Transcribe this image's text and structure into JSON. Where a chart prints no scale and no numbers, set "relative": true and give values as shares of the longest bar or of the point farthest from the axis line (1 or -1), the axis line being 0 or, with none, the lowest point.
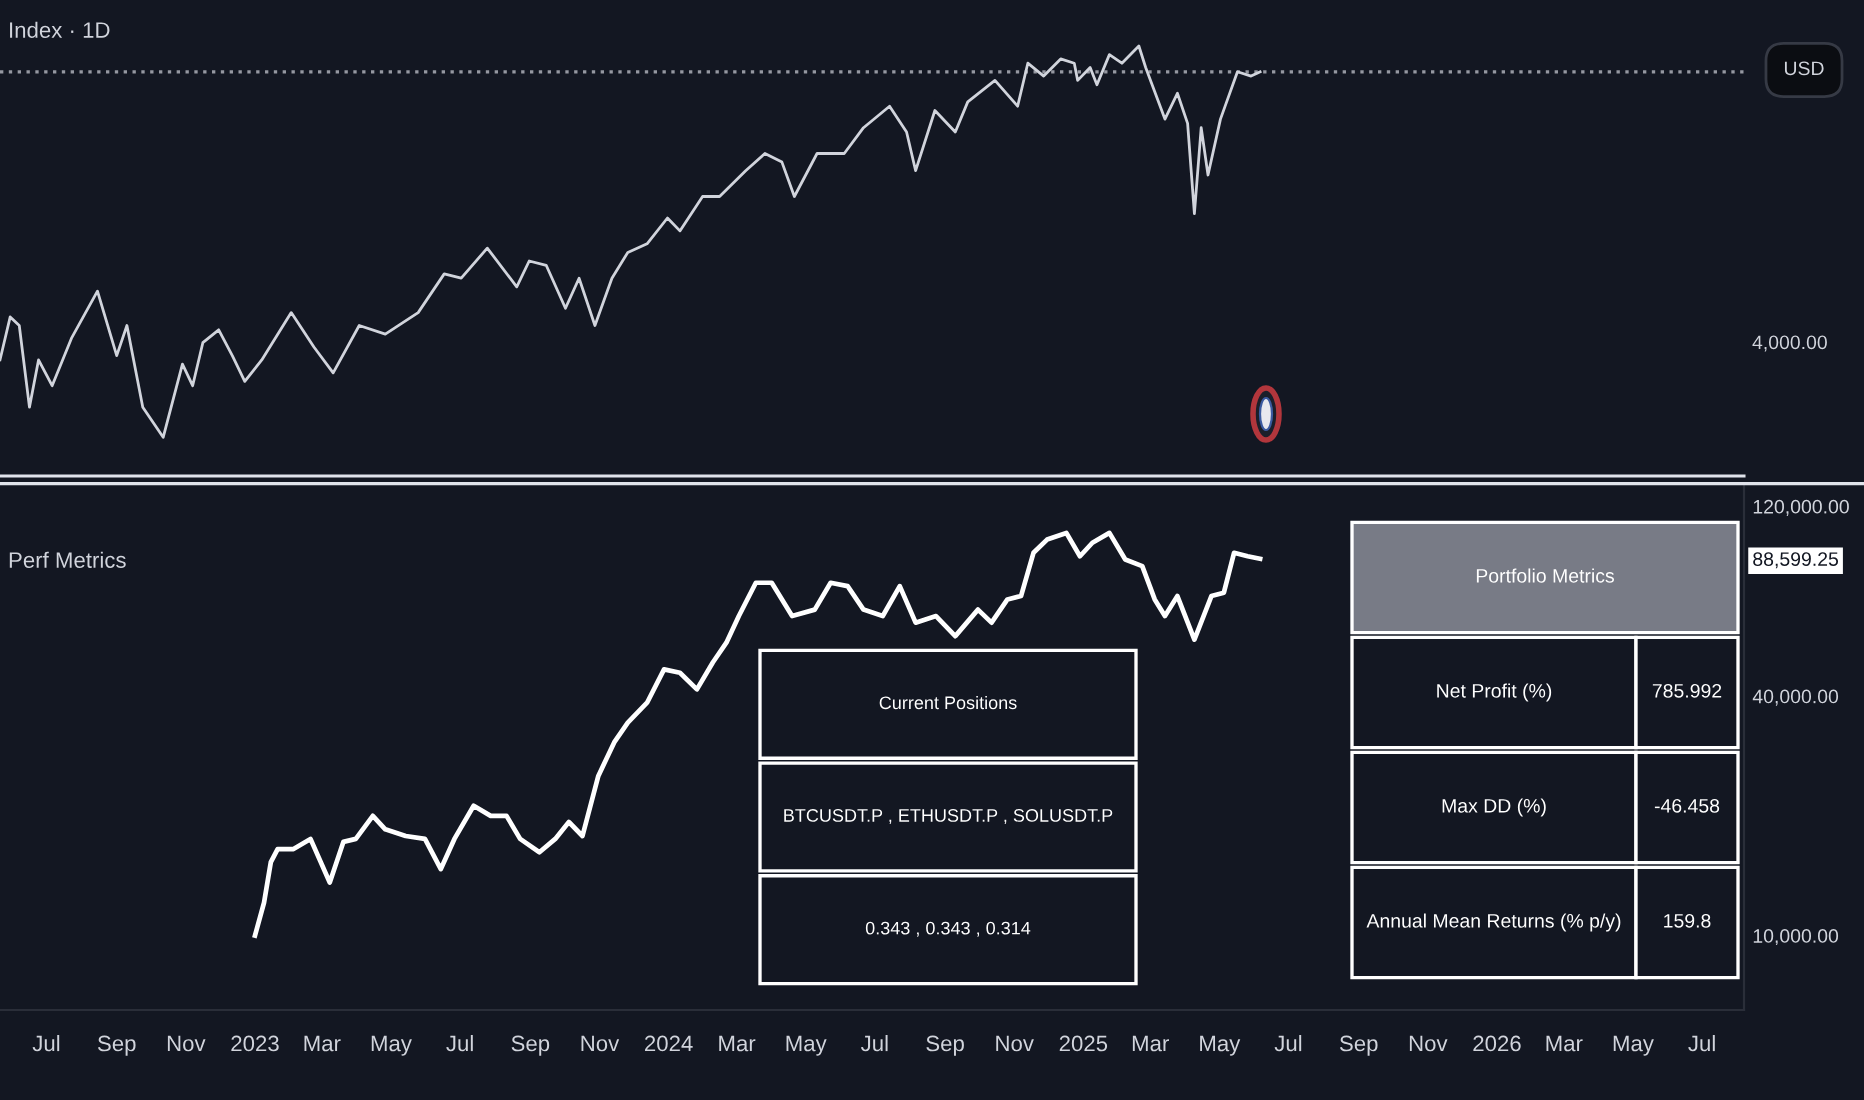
{
  "chart_data": [
    {
      "type": "line",
      "title": "Index · 1D",
      "relative": true,
      "xlim": [
        "2022-05-21",
        "2026-08-07"
      ],
      "series": [
        {
          "color": "#d1d4dc",
          "x": [
            "2022-05-21",
            "2022-05-30",
            "2022-06-07",
            "2022-06-16",
            "2022-06-24",
            "2022-07-06",
            "2022-07-23",
            "2022-08-15",
            "2022-09-01",
            "2022-09-10",
            "2022-09-24",
            "2022-10-12",
            "2022-10-29",
            "2022-11-07",
            "2022-11-16",
            "2022-11-30",
            "2022-12-12",
            "2022-12-23",
            "2023-01-07",
            "2023-02-02",
            "2023-02-22",
            "2023-03-11",
            "2023-04-03",
            "2023-04-26",
            "2023-05-25",
            "2023-06-17",
            "2023-07-02",
            "2023-07-25",
            "2023-08-20",
            "2023-08-31",
            "2023-09-15",
            "2023-10-02",
            "2023-10-14",
            "2023-10-28",
            "2023-11-12",
            "2023-11-26",
            "2023-12-13",
            "2023-12-31",
            "2024-01-11",
            "2024-01-31",
            "2024-02-15",
            "2024-03-09",
            "2024-03-26",
            "2024-04-10",
            "2024-04-21",
            "2024-05-11",
            "2024-06-04",
            "2024-06-21",
            "2024-07-14",
            "2024-07-29",
            "2024-08-06",
            "2024-08-23",
            "2024-09-10",
            "2024-09-21",
            "2024-10-15",
            "2024-11-04",
            "2024-11-13",
            "2024-11-27",
            "2024-12-12",
            "2024-12-24",
            "2024-12-27",
            "2025-01-07",
            "2025-01-13",
            "2025-01-24",
            "2025-02-04",
            "2025-02-19",
            "2025-02-25",
            "2025-03-14",
            "2025-03-25",
            "2025-04-03",
            "2025-04-09",
            "2025-04-15",
            "2025-04-21",
            "2025-05-02",
            "2025-05-17",
            "2025-05-29",
            "2025-06-06"
          ],
          "values": [
            0.27,
            0.37,
            0.35,
            0.16,
            0.27,
            0.21,
            0.32,
            0.43,
            0.28,
            0.35,
            0.16,
            0.09,
            0.26,
            0.21,
            0.31,
            0.34,
            0.28,
            0.22,
            0.27,
            0.38,
            0.3,
            0.24,
            0.35,
            0.33,
            0.38,
            0.47,
            0.46,
            0.53,
            0.44,
            0.5,
            0.49,
            0.39,
            0.46,
            0.35,
            0.46,
            0.52,
            0.54,
            0.6,
            0.57,
            0.65,
            0.65,
            0.71,
            0.75,
            0.73,
            0.65,
            0.75,
            0.75,
            0.81,
            0.86,
            0.8,
            0.71,
            0.85,
            0.8,
            0.87,
            0.92,
            0.86,
            0.96,
            0.93,
            0.97,
            0.96,
            0.92,
            0.95,
            0.91,
            0.98,
            0.96,
            1,
            0.95,
            0.83,
            0.89,
            0.82,
            0.61,
            0.81,
            0.7,
            0.83,
            0.94,
            0.93,
            0.94
          ]
        }
      ],
      "ref_lines": [
        {
          "axis": "y",
          "value": 0.94,
          "color": "#9598a1",
          "line_style": "dotted"
        }
      ],
      "annotations": [
        "4,000.00",
        "USD"
      ]
    },
    {
      "type": "line",
      "title": "Perf Metrics",
      "log": "y",
      "xlim": [
        "2022-05-21",
        "2026-08-07"
      ],
      "xticks": [
        {
          "value": "2022-07-01",
          "label": "Jul"
        },
        {
          "value": "2022-09-01",
          "label": "Sep"
        },
        {
          "value": "2022-11-01",
          "label": "Nov"
        },
        {
          "value": "2023-01-01",
          "label": "2023"
        },
        {
          "value": "2023-03-01",
          "label": "Mar"
        },
        {
          "value": "2023-05-01",
          "label": "May"
        },
        {
          "value": "2023-07-01",
          "label": "Jul"
        },
        {
          "value": "2023-09-01",
          "label": "Sep"
        },
        {
          "value": "2023-11-01",
          "label": "Nov"
        },
        {
          "value": "2024-01-01",
          "label": "2024"
        },
        {
          "value": "2024-03-01",
          "label": "Mar"
        },
        {
          "value": "2024-05-01",
          "label": "May"
        },
        {
          "value": "2024-07-01",
          "label": "Jul"
        },
        {
          "value": "2024-09-01",
          "label": "Sep"
        },
        {
          "value": "2024-11-01",
          "label": "Nov"
        },
        {
          "value": "2025-01-01",
          "label": "2025"
        },
        {
          "value": "2025-03-01",
          "label": "Mar"
        },
        {
          "value": "2025-05-01",
          "label": "May"
        },
        {
          "value": "2025-07-01",
          "label": "Jul"
        },
        {
          "value": "2025-09-01",
          "label": "Sep"
        },
        {
          "value": "2025-11-01",
          "label": "Nov"
        },
        {
          "value": "2026-01-01",
          "label": "2026"
        },
        {
          "value": "2026-03-01",
          "label": "Mar"
        },
        {
          "value": "2026-05-01",
          "label": "May"
        },
        {
          "value": "2026-07-01",
          "label": "Jul"
        }
      ],
      "ylim": [
        6500,
        135000
      ],
      "yticks": [
        {
          "value": 10000,
          "label": "10,000.00"
        },
        {
          "value": 40000,
          "label": "40,000.00"
        },
        {
          "value": 88599.25,
          "label": "88,599.25"
        },
        {
          "value": 120000,
          "label": "120,000.00"
        }
      ],
      "series": [
        {
          "color": "#ffffff",
          "x": [
            "2023-01-01",
            "2023-01-09",
            "2023-01-15",
            "2023-01-21",
            "2023-02-04",
            "2023-02-19",
            "2023-03-08",
            "2023-03-20",
            "2023-03-31",
            "2023-04-15",
            "2023-04-26",
            "2023-05-14",
            "2023-05-31",
            "2023-06-14",
            "2023-06-26",
            "2023-07-13",
            "2023-07-28",
            "2023-08-11",
            "2023-08-23",
            "2023-09-09",
            "2023-09-23",
            "2023-10-05",
            "2023-10-17",
            "2023-10-31",
            "2023-11-14",
            "2023-11-26",
            "2023-12-13",
            "2023-12-28",
            "2024-01-11",
            "2024-01-26",
            "2024-02-09",
            "2024-02-21",
            "2024-03-03",
            "2024-03-18",
            "2024-04-01",
            "2024-04-19",
            "2024-05-09",
            "2024-05-23",
            "2024-06-07",
            "2024-06-21",
            "2024-07-08",
            "2024-07-23",
            "2024-08-06",
            "2024-08-24",
            "2024-09-10",
            "2024-09-30",
            "2024-10-12",
            "2024-10-26",
            "2024-11-07",
            "2024-11-18",
            "2024-11-30",
            "2024-12-17",
            "2024-12-29",
            "2025-01-09",
            "2025-01-24",
            "2025-02-07",
            "2025-02-22",
            "2025-03-05",
            "2025-03-14",
            "2025-03-25",
            "2025-04-09",
            "2025-04-24",
            "2025-05-05",
            "2025-05-14",
            "2025-05-26",
            "2025-06-06"
          ],
          "values": [
            10000,
            12100,
            15300,
            16500,
            16500,
            17500,
            13600,
            17200,
            17500,
            20000,
            18500,
            17800,
            17500,
            14700,
            17500,
            21200,
            20000,
            20000,
            17500,
            16200,
            17500,
            19300,
            17800,
            25200,
            30600,
            34300,
            38500,
            46700,
            45800,
            41600,
            48600,
            54500,
            63600,
            77100,
            77100,
            63600,
            66000,
            77100,
            75600,
            66000,
            63600,
            75600,
            61200,
            63600,
            56600,
            66000,
            61200,
            70000,
            71400,
            91700,
            99000,
            102900,
            89900,
            97200,
            102900,
            88200,
            84900,
            70000,
            63600,
            71400,
            55500,
            71400,
            72800,
            91700,
            89900,
            88599.25
          ]
        }
      ]
    },
    {
      "type": "other",
      "annotations": [
        "Portfolio Metrics"
      ],
      "categories": [
        "Net Profit (%)",
        "Max DD (%)",
        "Annual Mean Returns (% p/y)"
      ],
      "values": [
        785.992,
        -46.458,
        159.8
      ],
      "data_labels": true
    },
    {
      "type": "other",
      "title": "Current Positions",
      "annotations": [
        "BTCUSDT.P , ETHUSDT.P , SOLUSDT.P",
        "0.343 , 0.343 , 0.314"
      ]
    }
  ]
}
